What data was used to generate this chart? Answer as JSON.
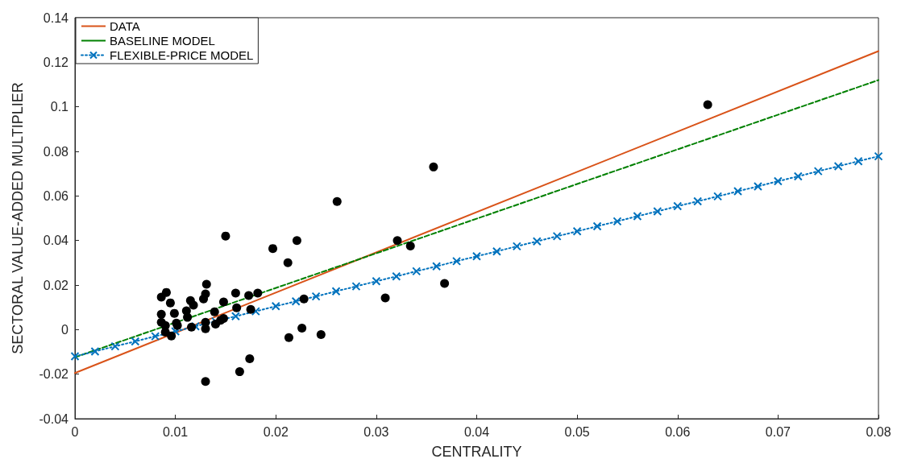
{
  "chart_data": {
    "type": "line",
    "xlabel": "CENTRALITY",
    "ylabel": "SECTORAL VALUE-ADDED MULTIPLIER",
    "xlim": [
      0,
      0.08
    ],
    "xticks": [
      0,
      0.01,
      0.02,
      0.03,
      0.04,
      0.05,
      0.06,
      0.07,
      0.08
    ],
    "ylim": [
      -0.04,
      0.14
    ],
    "yticks": [
      -0.04,
      -0.02,
      0,
      0.02,
      0.04,
      0.06,
      0.08,
      0.1,
      0.12,
      0.14
    ],
    "grid": false,
    "legend": "top left",
    "series": [
      {
        "type": "scatter",
        "marker": "circle",
        "color": "#000000",
        "x": [
          0.063,
          0.0261,
          0.0357,
          0.015,
          0.0197,
          0.0221,
          0.0212,
          0.0321,
          0.0334,
          0.0368,
          0.0309,
          0.0228,
          0.0213,
          0.0226,
          0.0245,
          0.0174,
          0.0164,
          0.013,
          0.0131,
          0.013,
          0.0128,
          0.0091,
          0.0086,
          0.0095,
          0.0115,
          0.0118,
          0.0111,
          0.0099,
          0.0086,
          0.0112,
          0.0086,
          0.009,
          0.0101,
          0.0102,
          0.0096,
          0.0116,
          0.013,
          0.013,
          0.0139,
          0.014,
          0.0148,
          0.0148,
          0.016,
          0.0161,
          0.0173,
          0.0182,
          0.0175,
          0.009,
          0.0145
        ],
        "values": [
          0.101,
          0.0575,
          0.073,
          0.042,
          0.0364,
          0.04,
          0.03,
          0.04,
          0.0375,
          0.0207,
          0.0142,
          0.0138,
          -0.0036,
          0.0007,
          -0.0022,
          -0.0131,
          -0.0189,
          -0.0233,
          0.0204,
          0.016,
          0.0138,
          0.0167,
          0.0146,
          0.012,
          0.013,
          0.011,
          0.0084,
          0.0073,
          0.0069,
          0.0055,
          0.0033,
          0.0018,
          0.0029,
          0.0018,
          -0.0029,
          0.0011,
          0.0033,
          0.0004,
          0.008,
          0.0025,
          0.005,
          0.0124,
          0.0164,
          0.0098,
          0.0153,
          0.0164,
          0.0091,
          -0.0011,
          0.0042
        ]
      },
      {
        "name": "DATA",
        "marker": "none",
        "line_style": "solid",
        "color": "#d95319",
        "x": [
          0,
          0.08
        ],
        "values": [
          -0.0195,
          0.125
        ]
      },
      {
        "name": "BASELINE MODEL",
        "marker": "none",
        "line_style": "dashed",
        "color": "#008000",
        "x": [
          0,
          0.08
        ],
        "values": [
          -0.0124,
          0.112
        ]
      },
      {
        "name": "FLEXIBLE-PRICE MODEL",
        "marker": "cross",
        "line_style": "dotted",
        "color": "#0072bd",
        "x": [
          0,
          0.002,
          0.004,
          0.006,
          0.008,
          0.01,
          0.012,
          0.014,
          0.016,
          0.018,
          0.02,
          0.022,
          0.024,
          0.026,
          0.028,
          0.03,
          0.032,
          0.034,
          0.036,
          0.038,
          0.04,
          0.042,
          0.044,
          0.046,
          0.048,
          0.05,
          0.052,
          0.054,
          0.056,
          0.058,
          0.06,
          0.062,
          0.064,
          0.066,
          0.068,
          0.07,
          0.072,
          0.074,
          0.076,
          0.078,
          0.08
        ],
        "values": [
          -0.012,
          -0.0098,
          -0.0075,
          -0.0053,
          -0.003,
          -0.0008,
          0.0015,
          0.0037,
          0.006,
          0.0082,
          0.0105,
          0.0127,
          0.0149,
          0.0172,
          0.0194,
          0.0217,
          0.0239,
          0.0262,
          0.0284,
          0.0307,
          0.0329,
          0.0351,
          0.0374,
          0.0396,
          0.0419,
          0.0441,
          0.0464,
          0.0486,
          0.0509,
          0.0531,
          0.0554,
          0.0576,
          0.0598,
          0.0621,
          0.0643,
          0.0666,
          0.0688,
          0.0711,
          0.0733,
          0.0756,
          0.0778
        ]
      }
    ]
  }
}
